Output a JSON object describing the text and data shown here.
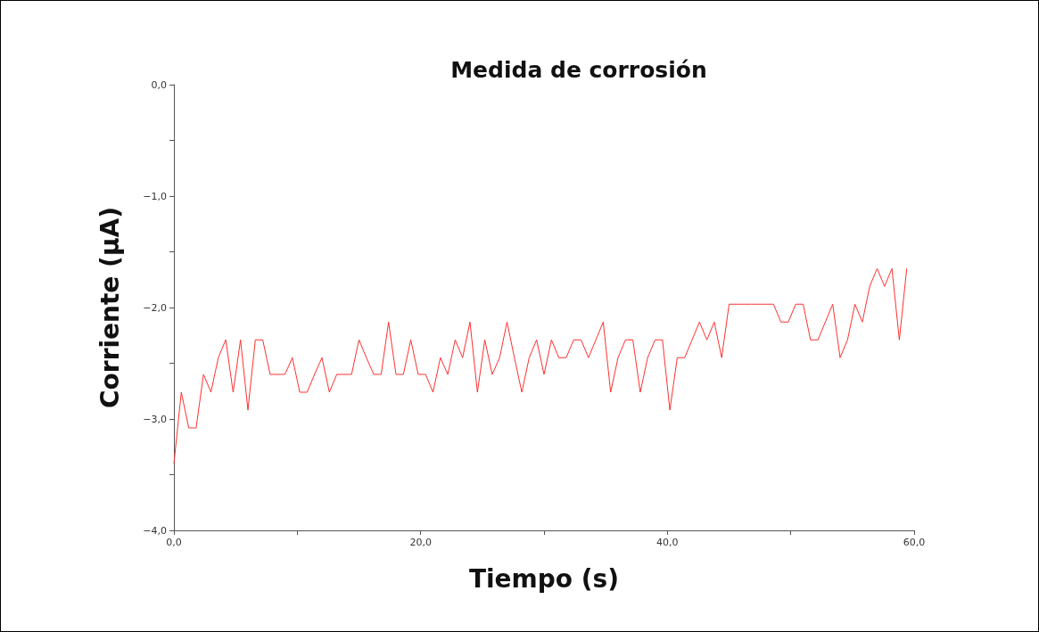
{
  "chart_data": {
    "type": "line",
    "title": "Medida de corrosión",
    "xlabel": "Tiempo (s)",
    "ylabel": "Corriente (μA)",
    "x": [
      0,
      0.6,
      1.2,
      1.8,
      2.4,
      3,
      3.6,
      4.2,
      4.8,
      5.4,
      6,
      6.6,
      7.2,
      7.8,
      8.4,
      9,
      9.6,
      10.2,
      10.8,
      11.4,
      12,
      12.6,
      13.2,
      13.8,
      14.4,
      15,
      15.6,
      16.2,
      16.8,
      17.4,
      18,
      18.6,
      19.2,
      19.8,
      20.4,
      21,
      21.6,
      22.2,
      22.8,
      23.4,
      24,
      24.6,
      25.2,
      25.8,
      26.4,
      27,
      27.6,
      28.2,
      28.8,
      29.4,
      30,
      30.6,
      31.2,
      31.8,
      32.4,
      33,
      33.6,
      34.2,
      34.8,
      35.4,
      36,
      36.6,
      37.2,
      37.8,
      38.4,
      39,
      39.6,
      40.2,
      40.8,
      41.4,
      42,
      42.6,
      43.2,
      43.8,
      44.4,
      45,
      45.6,
      46.2,
      46.8,
      47.4,
      48,
      48.6,
      49.2,
      49.8,
      50.4,
      51,
      51.6,
      52.2,
      52.8,
      53.4,
      54,
      54.6,
      55.2,
      55.8,
      56.4,
      57,
      57.6,
      58.2,
      58.8,
      59.4
    ],
    "series": [
      {
        "color": "#ff3030",
        "values": [
          -3.4,
          -2.76,
          -3.08,
          -3.08,
          -2.6,
          -2.76,
          -2.45,
          -2.29,
          -2.76,
          -2.29,
          -2.92,
          -2.29,
          -2.29,
          -2.6,
          -2.6,
          -2.6,
          -2.45,
          -2.76,
          -2.76,
          -2.6,
          -2.45,
          -2.76,
          -2.6,
          -2.6,
          -2.6,
          -2.29,
          -2.45,
          -2.6,
          -2.6,
          -2.13,
          -2.6,
          -2.6,
          -2.29,
          -2.6,
          -2.6,
          -2.76,
          -2.45,
          -2.6,
          -2.29,
          -2.45,
          -2.13,
          -2.76,
          -2.29,
          -2.6,
          -2.45,
          -2.13,
          -2.45,
          -2.76,
          -2.45,
          -2.29,
          -2.6,
          -2.29,
          -2.45,
          -2.45,
          -2.29,
          -2.29,
          -2.45,
          -2.29,
          -2.13,
          -2.76,
          -2.45,
          -2.29,
          -2.29,
          -2.76,
          -2.45,
          -2.29,
          -2.29,
          -2.92,
          -2.45,
          -2.45,
          -2.29,
          -2.13,
          -2.29,
          -2.13,
          -2.45,
          -1.97,
          -1.97,
          -1.97,
          -1.97,
          -1.97,
          -1.97,
          -1.97,
          -2.13,
          -2.13,
          -1.97,
          -1.97,
          -2.29,
          -2.29,
          -2.13,
          -1.97,
          -2.45,
          -2.29,
          -1.97,
          -2.13,
          -1.81,
          -1.65,
          -1.81,
          -1.65,
          -2.29,
          -1.65
        ]
      }
    ],
    "xlim": [
      0,
      60
    ],
    "ylim": [
      -4,
      0
    ],
    "xticks": [
      {
        "value": 0,
        "label": "0,0"
      },
      {
        "value": 10,
        "label": null
      },
      {
        "value": 20,
        "label": "20,0"
      },
      {
        "value": 30,
        "label": null
      },
      {
        "value": 40,
        "label": "40,0"
      },
      {
        "value": 50,
        "label": null
      },
      {
        "value": 60,
        "label": "60,0"
      }
    ],
    "yticks": [
      {
        "value": -4,
        "label": "−4,0"
      },
      {
        "value": -3.5,
        "label": null
      },
      {
        "value": -3,
        "label": "−3,0"
      },
      {
        "value": -2.5,
        "label": null
      },
      {
        "value": -2,
        "label": "−2,0"
      },
      {
        "value": -1.5,
        "label": null
      },
      {
        "value": -1,
        "label": "−1,0"
      },
      {
        "value": -0.5,
        "label": null
      },
      {
        "value": 0,
        "label": "0,0"
      }
    ],
    "grid": false,
    "marker": "none",
    "line_style": "solid"
  }
}
